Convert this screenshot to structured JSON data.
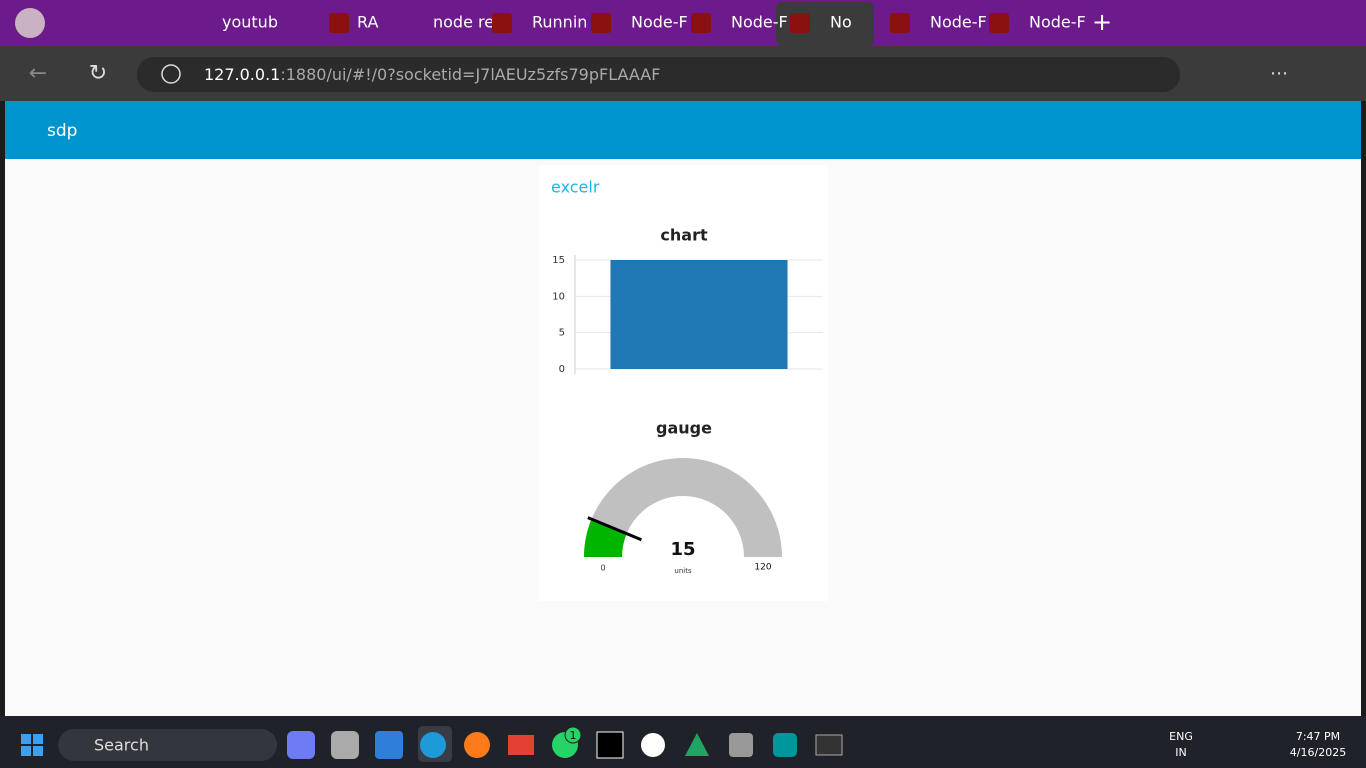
{
  "browser": {
    "tabs": [
      "youtub",
      "RA",
      "node re",
      "Runnin",
      "Node-F",
      "Node-F",
      "No",
      "Node-F",
      "Node-F"
    ],
    "address_host": "127.0.0.1",
    "address_rest": ":1880/ui/#!/0?socketid=J7lAEUz5zfs79pFLAAAF"
  },
  "dashboard": {
    "header": "sdp",
    "group": "excelr",
    "chart": {
      "type": "bar",
      "title": "chart",
      "values": [
        15
      ],
      "color": "#1f77b4",
      "ylim": [
        0,
        15
      ],
      "yticks": [
        0,
        5,
        10,
        15
      ],
      "grid": true
    },
    "gauge": {
      "type": "gauge",
      "title": "gauge",
      "value": 15,
      "min": 0,
      "max": 120,
      "units": "units",
      "color": "#00b500",
      "track_color": "#c0c0c0"
    }
  },
  "taskbar": {
    "search": "Search",
    "badge": "1",
    "lang": "ENG",
    "region": "IN",
    "time": "7:47 PM",
    "date": "4/16/2025"
  }
}
